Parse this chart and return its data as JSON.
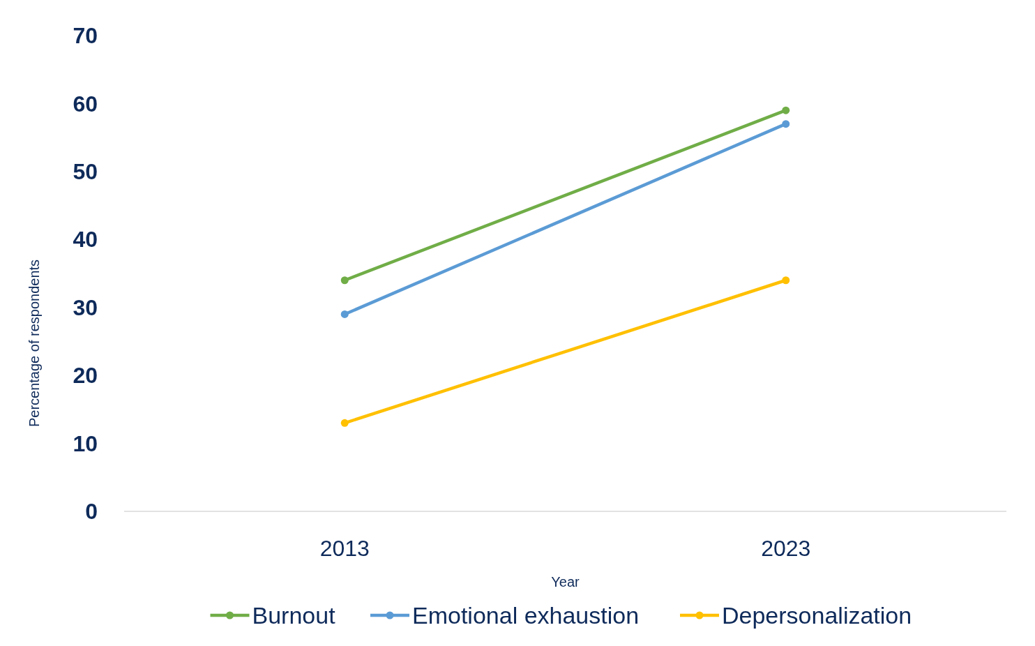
{
  "chart_data": {
    "type": "line",
    "xlabel": "Year",
    "ylabel": "Percentage of respondents",
    "categories": [
      "2013",
      "2023"
    ],
    "series": [
      {
        "name": "Burnout",
        "color": "#70ad47",
        "values": [
          34,
          59
        ]
      },
      {
        "name": "Emotional exhaustion",
        "color": "#5b9bd5",
        "values": [
          29,
          57
        ]
      },
      {
        "name": "Depersonalization",
        "color": "#ffc000",
        "values": [
          13,
          34
        ]
      }
    ],
    "ylim": [
      0,
      70
    ],
    "yticks": [
      0,
      10,
      20,
      30,
      40,
      50,
      60,
      70
    ],
    "grid": false,
    "legend": "bottom",
    "marker": "circle",
    "line_style": "solid"
  }
}
